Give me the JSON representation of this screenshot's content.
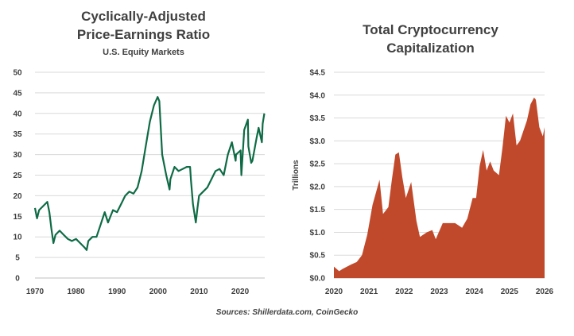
{
  "colors": {
    "cape_line": "#0e6b45",
    "crypto_area": "#c1492b",
    "grid": "#d9d9d9",
    "text": "#404040"
  },
  "source": "Sources: Shillerdata.com, CoinGecko",
  "chart_data": [
    {
      "type": "line",
      "title": "Cyclically-Adjusted Price-Earnings Ratio",
      "title_lines": [
        "Cyclically-Adjusted",
        "Price-Earnings Ratio"
      ],
      "subtitle": "U.S. Equity Markets",
      "xlabel": "",
      "ylabel": "",
      "xlim": [
        1970,
        2026
      ],
      "ylim": [
        0,
        50
      ],
      "grid": true,
      "x_ticks": [
        "1970",
        "1980",
        "1990",
        "2000",
        "2010",
        "2020"
      ],
      "y_ticks": [
        "0",
        "5",
        "10",
        "15",
        "20",
        "25",
        "30",
        "35",
        "40",
        "45",
        "50"
      ],
      "series": [
        {
          "x": [
            1970,
            1970.5,
            1971,
            1972,
            1973,
            1973.5,
            1974,
            1974.5,
            1975,
            1976,
            1977,
            1978,
            1979,
            1980,
            1981,
            1982,
            1982.6,
            1983,
            1984,
            1985,
            1986,
            1987,
            1987.8,
            1988,
            1989,
            1990,
            1991,
            1992,
            1993,
            1994,
            1995,
            1996,
            1997,
            1998,
            1999,
            1999.9,
            2000.3,
            2001,
            2002,
            2002.8,
            2003,
            2004,
            2005,
            2006,
            2007,
            2007.8,
            2008,
            2008.5,
            2009.2,
            2009.6,
            2010,
            2011,
            2012,
            2013,
            2014,
            2015,
            2016,
            2017,
            2018,
            2018.9,
            2019,
            2020.1,
            2020.3,
            2021,
            2021.9,
            2022,
            2022.7,
            2023,
            2024,
            2024.5,
            2025.3,
            2025.5,
            2025.9
          ],
          "y": [
            17,
            14.5,
            16.5,
            17.5,
            18.5,
            16,
            12,
            8.5,
            10.5,
            11.5,
            10.5,
            9.5,
            9,
            9.5,
            8.5,
            7.5,
            6.8,
            9,
            10,
            10,
            13,
            16,
            13.5,
            14,
            16.5,
            16,
            18,
            20,
            21,
            20.5,
            22,
            26,
            32,
            38,
            42,
            44,
            43,
            30,
            25,
            21.5,
            24,
            27,
            26,
            26.5,
            27,
            27,
            24,
            18,
            13.5,
            17,
            20,
            21,
            22,
            24,
            26,
            26.5,
            25,
            30,
            33,
            28.5,
            30,
            31,
            25,
            36,
            38.5,
            32,
            28,
            28.5,
            34,
            36.5,
            33,
            37.5,
            40
          ]
        }
      ]
    },
    {
      "type": "area",
      "title": "Total Cryptocurrency Capitalization",
      "title_lines": [
        "Total Cryptocurrency",
        "Capitalization"
      ],
      "xlabel": "",
      "ylabel": "Trillions",
      "xlim": [
        2020,
        2026
      ],
      "ylim": [
        0,
        4.5
      ],
      "grid": true,
      "x_ticks": [
        "2020",
        "2021",
        "2022",
        "2023",
        "2024",
        "2025",
        "2026"
      ],
      "y_ticks": [
        "$0.0",
        "$0.5",
        "$1.0",
        "$1.5",
        "$2.0",
        "$2.5",
        "$3.0",
        "$3.5",
        "$4.0",
        "$4.5"
      ],
      "series": [
        {
          "x": [
            2020,
            2020.15,
            2020.25,
            2020.5,
            2020.65,
            2020.8,
            2020.95,
            2021.1,
            2021.3,
            2021.4,
            2021.55,
            2021.65,
            2021.75,
            2021.85,
            2021.95,
            2022.05,
            2022.2,
            2022.35,
            2022.45,
            2022.65,
            2022.8,
            2022.9,
            2023.1,
            2023.25,
            2023.45,
            2023.55,
            2023.65,
            2023.8,
            2023.95,
            2024.05,
            2024.15,
            2024.25,
            2024.35,
            2024.45,
            2024.55,
            2024.7,
            2024.8,
            2024.9,
            2025,
            2025.1,
            2025.2,
            2025.3,
            2025.5,
            2025.6,
            2025.7,
            2025.75,
            2025.85,
            2025.95,
            2026
          ],
          "y": [
            0.25,
            0.15,
            0.2,
            0.3,
            0.35,
            0.5,
            0.95,
            1.6,
            2.15,
            1.4,
            1.55,
            2.15,
            2.7,
            2.75,
            2.2,
            1.75,
            2.1,
            1.25,
            0.9,
            1.0,
            1.05,
            0.85,
            1.2,
            1.2,
            1.2,
            1.15,
            1.1,
            1.3,
            1.75,
            1.75,
            2.45,
            2.8,
            2.35,
            2.55,
            2.35,
            2.25,
            2.85,
            3.55,
            3.4,
            3.6,
            2.9,
            3.0,
            3.45,
            3.8,
            3.95,
            3.9,
            3.3,
            3.1,
            3.3
          ]
        }
      ]
    }
  ]
}
